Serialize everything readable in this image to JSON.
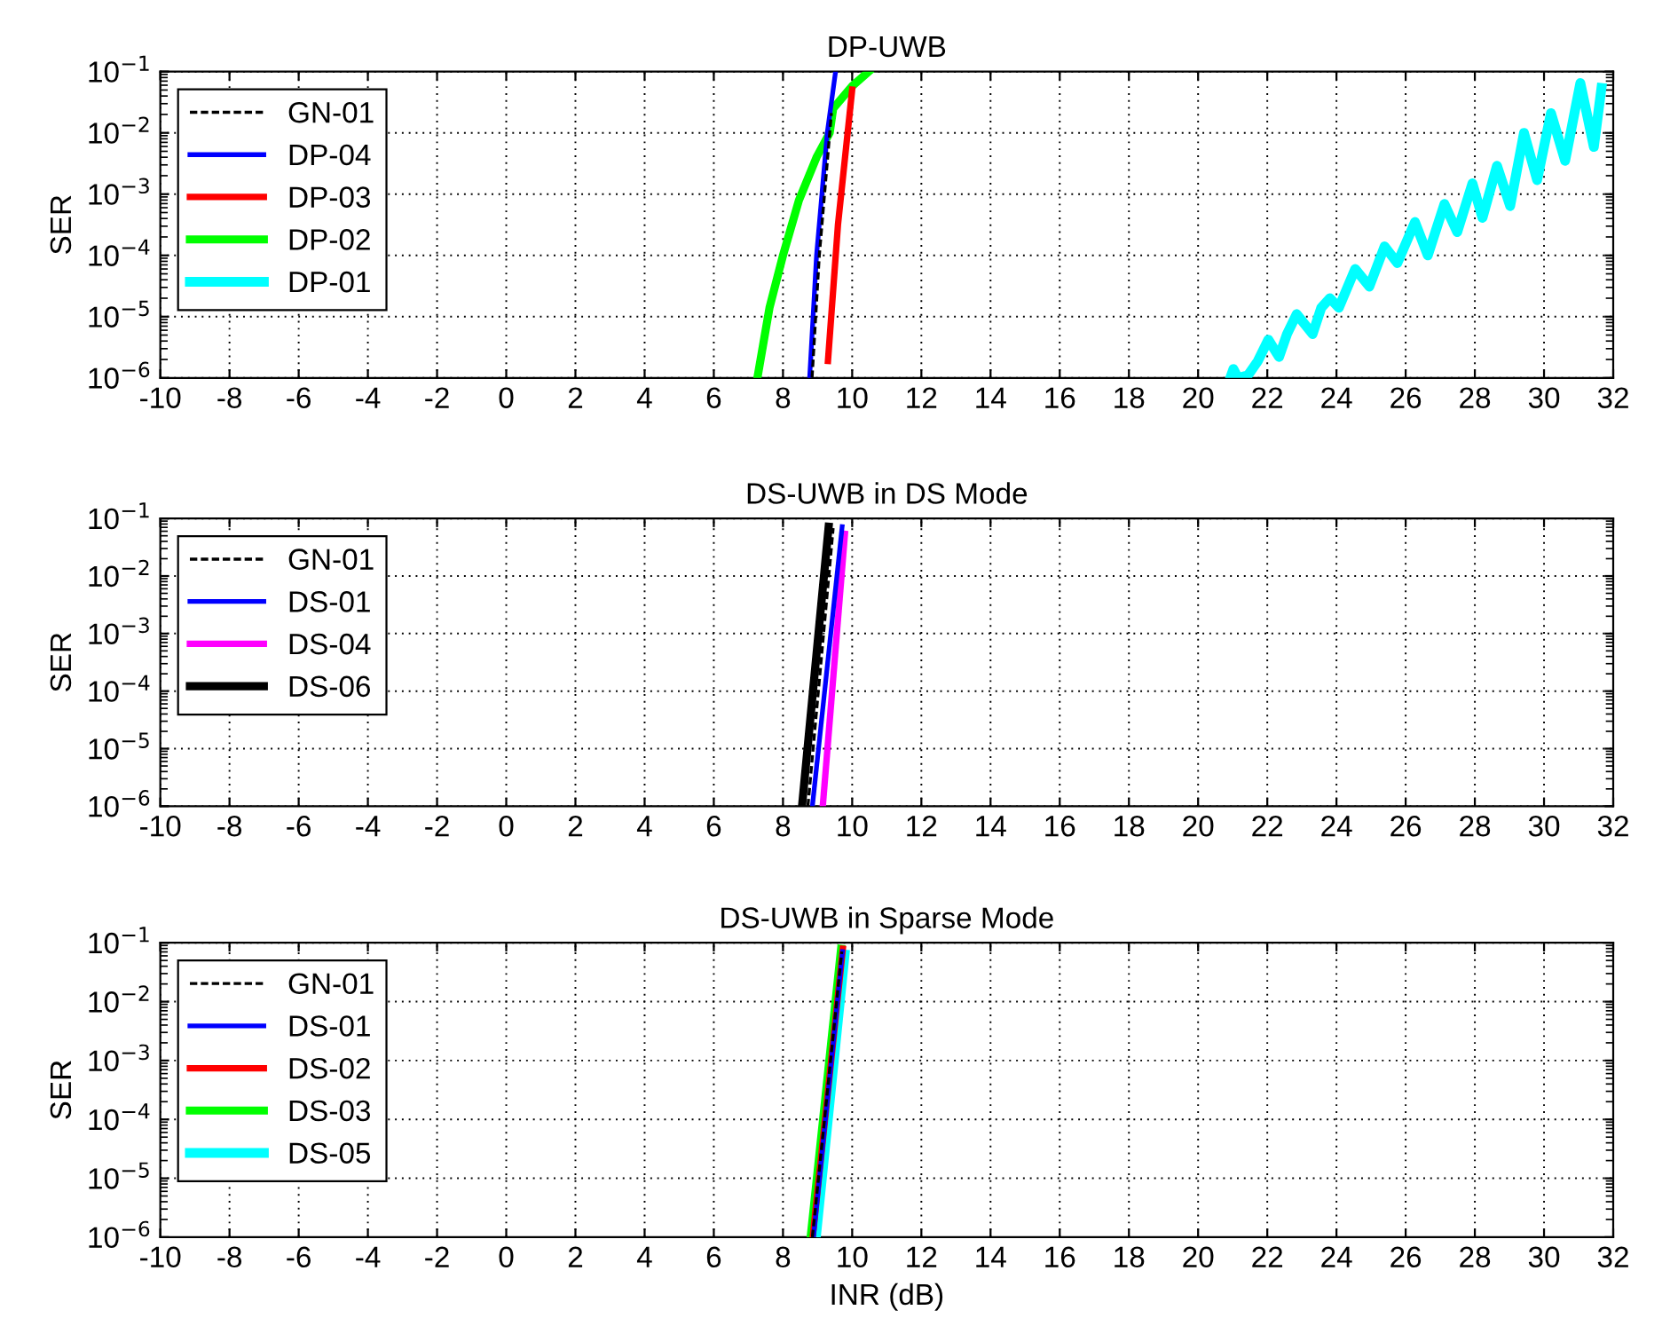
{
  "chart_data": [
    {
      "type": "line",
      "title": "DP-UWB",
      "ylabel": "SER",
      "log": "y",
      "grid": true,
      "legend": "top left",
      "marker": "none",
      "xlim": [
        -10,
        32
      ],
      "xticks": [
        -10,
        -8,
        -6,
        -4,
        -2,
        0,
        2,
        4,
        6,
        8,
        10,
        12,
        14,
        16,
        18,
        20,
        22,
        24,
        26,
        28,
        30,
        32
      ],
      "ylim": [
        1e-06,
        0.1
      ],
      "yticks": [
        {
          "value": 1e-06,
          "label": "10$^{−6}$"
        },
        {
          "value": 1e-05,
          "label": "10$^{−5}$"
        },
        {
          "value": 0.0001,
          "label": "10$^{−4}$"
        },
        {
          "value": 0.001,
          "label": "10$^{−3}$"
        },
        {
          "value": 0.01,
          "label": "10$^{−2}$"
        },
        {
          "value": 0.1,
          "label": "10$^{−1}$"
        }
      ],
      "series": [
        {
          "name": "GN-01",
          "color": "#000000",
          "line_style": "dashed",
          "x": [
            8.84,
            9.05,
            9.4
          ],
          "values": [
            1e-06,
            0.0001,
            0.021
          ]
        },
        {
          "name": "DP-04",
          "color": "#0000ff",
          "line_style": "solid",
          "x": [
            8.77,
            8.97,
            9.28,
            9.52
          ],
          "values": [
            1e-06,
            0.0001,
            0.01,
            0.1
          ]
        },
        {
          "name": "DP-03",
          "color": "#ff0000",
          "line_style": "solid",
          "x": [
            9.3,
            9.59,
            10.0
          ],
          "values": [
            1.9e-06,
            0.00032,
            0.051
          ]
        },
        {
          "name": "DP-02",
          "color": "#00ff00",
          "line_style": "solid",
          "x": [
            7.26,
            7.61,
            8.0,
            8.46,
            8.97,
            9.35,
            9.45,
            10.0,
            10.48
          ],
          "values": [
            1e-06,
            1.4e-05,
            0.0001,
            0.00079,
            0.004,
            0.01,
            0.025,
            0.058,
            0.1
          ]
        },
        {
          "name": "DP-01",
          "color": "#00ffff",
          "line_style": "solid",
          "x": [
            20.93,
            21.02,
            21.15,
            21.44,
            21.73,
            22.03,
            22.34,
            22.57,
            22.85,
            23.31,
            23.56,
            23.81,
            24.07,
            24.54,
            24.95,
            25.39,
            25.76,
            26.27,
            26.64,
            27.12,
            27.49,
            27.93,
            28.22,
            28.64,
            29.02,
            29.42,
            29.8,
            30.2,
            30.61,
            31.05,
            31.44,
            31.66
          ],
          "values": [
            1e-06,
            1.4e-06,
            1e-06,
            1.1e-06,
            1.9e-06,
            4.2e-06,
            2.2e-06,
            5.2e-06,
            1.1e-05,
            5.2e-06,
            1.4e-05,
            2e-05,
            1.4e-05,
            6e-05,
            3.1e-05,
            0.00014,
            7.5e-05,
            0.00035,
            0.0001,
            0.00069,
            0.00024,
            0.0015,
            0.00041,
            0.0029,
            0.00064,
            0.01,
            0.0017,
            0.021,
            0.0035,
            0.065,
            0.0059,
            0.054
          ]
        }
      ]
    },
    {
      "type": "line",
      "title": "DS-UWB in DS Mode",
      "ylabel": "SER",
      "log": "y",
      "grid": true,
      "legend": "top left",
      "marker": "none",
      "xlim": [
        -10,
        32
      ],
      "xticks": [
        -10,
        -8,
        -6,
        -4,
        -2,
        0,
        2,
        4,
        6,
        8,
        10,
        12,
        14,
        16,
        18,
        20,
        22,
        24,
        26,
        28,
        30,
        32
      ],
      "ylim": [
        1e-06,
        0.1
      ],
      "yticks": [
        {
          "value": 1e-06,
          "label": "10$^{−6}$"
        },
        {
          "value": 1e-05,
          "label": "10$^{−5}$"
        },
        {
          "value": 0.0001,
          "label": "10$^{−4}$"
        },
        {
          "value": 0.001,
          "label": "10$^{−3}$"
        },
        {
          "value": 0.01,
          "label": "10$^{−2}$"
        },
        {
          "value": 0.1,
          "label": "10$^{−1}$"
        }
      ],
      "series": [
        {
          "name": "GN-01",
          "color": "#000000",
          "line_style": "dashed",
          "x": [
            8.72,
            9.45
          ],
          "values": [
            1e-06,
            0.068
          ]
        },
        {
          "name": "DS-01",
          "color": "#0000ff",
          "line_style": "solid",
          "x": [
            8.85,
            9.71
          ],
          "values": [
            1e-06,
            0.072
          ]
        },
        {
          "name": "DS-04",
          "color": "#ff00ff",
          "line_style": "solid",
          "x": [
            9.15,
            9.79
          ],
          "values": [
            1e-06,
            0.054
          ]
        },
        {
          "name": "DS-06",
          "color": "#000000",
          "line_style": "solid",
          "x": [
            8.55,
            9.32
          ],
          "values": [
            1e-06,
            0.072
          ]
        }
      ]
    },
    {
      "type": "line",
      "title": "DS-UWB in Sparse Mode",
      "xlabel": "INR (dB)",
      "ylabel": "SER",
      "log": "y",
      "grid": true,
      "legend": "top left",
      "marker": "none",
      "xlim": [
        -10,
        32
      ],
      "xticks": [
        -10,
        -8,
        -6,
        -4,
        -2,
        0,
        2,
        4,
        6,
        8,
        10,
        12,
        14,
        16,
        18,
        20,
        22,
        24,
        26,
        28,
        30,
        32
      ],
      "ylim": [
        1e-06,
        0.1
      ],
      "yticks": [
        {
          "value": 1e-06,
          "label": "10$^{−6}$"
        },
        {
          "value": 1e-05,
          "label": "10$^{−5}$"
        },
        {
          "value": 0.0001,
          "label": "10$^{−4}$"
        },
        {
          "value": 0.001,
          "label": "10$^{−3}$"
        },
        {
          "value": 0.01,
          "label": "10$^{−2}$"
        },
        {
          "value": 0.1,
          "label": "10$^{−1}$"
        }
      ],
      "series": [
        {
          "name": "GN-01",
          "color": "#000000",
          "line_style": "dashed",
          "x": [
            8.85,
            9.7
          ],
          "values": [
            1e-06,
            0.071
          ]
        },
        {
          "name": "DS-01",
          "color": "#0000ff",
          "line_style": "solid",
          "x": [
            8.88,
            9.72
          ],
          "values": [
            1e-06,
            0.071
          ]
        },
        {
          "name": "DS-02",
          "color": "#ff0000",
          "line_style": "solid",
          "x": [
            8.86,
            9.73
          ],
          "values": [
            1e-06,
            0.079
          ]
        },
        {
          "name": "DS-03",
          "color": "#00ff00",
          "line_style": "solid",
          "x": [
            8.8,
            9.68
          ],
          "values": [
            1e-06,
            0.079
          ]
        },
        {
          "name": "DS-05",
          "color": "#00ffff",
          "line_style": "solid",
          "x": [
            8.95,
            9.78
          ],
          "values": [
            1e-06,
            0.063
          ]
        }
      ]
    }
  ]
}
